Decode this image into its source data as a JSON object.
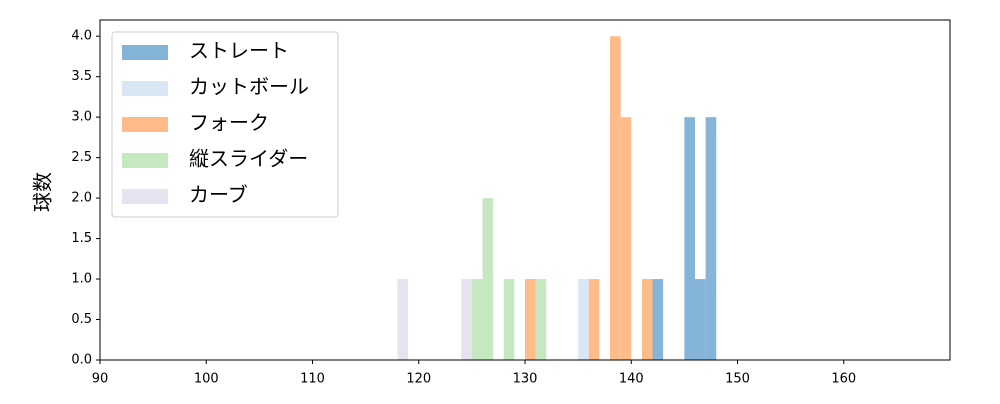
{
  "chart_data": {
    "type": "histogram",
    "y_label": "球数",
    "xlim": [
      90,
      170
    ],
    "ylim": [
      0,
      4.2
    ],
    "xticks": [
      90,
      100,
      110,
      120,
      130,
      140,
      150,
      160
    ],
    "yticks": [
      {
        "value": 0,
        "label": "0.0"
      },
      {
        "value": 0.5,
        "label": "0.5"
      },
      {
        "value": 1,
        "label": "1.0"
      },
      {
        "value": 1.5,
        "label": "1.5"
      },
      {
        "value": 2,
        "label": "2.0"
      },
      {
        "value": 2.5,
        "label": "2.5"
      },
      {
        "value": 3,
        "label": "3.0"
      },
      {
        "value": 3.5,
        "label": "3.5"
      },
      {
        "value": 4,
        "label": "4.0"
      }
    ],
    "legend": "upper left",
    "series": [
      {
        "name": "ストレート",
        "color": "#84b5d9",
        "bins": [
          142,
          143,
          144,
          145,
          146,
          147,
          148
        ],
        "values": [
          1,
          0,
          0,
          3,
          1,
          3
        ]
      },
      {
        "name": "カットボール",
        "color": "#d9e6f3",
        "bins": [
          135,
          136
        ],
        "values": [
          1
        ]
      },
      {
        "name": "フォーク",
        "color": "#ffbb88",
        "bins": [
          130,
          131,
          132,
          133,
          134,
          135,
          136,
          137,
          138,
          139,
          140,
          141,
          142
        ],
        "values": [
          1,
          0,
          0,
          0,
          0,
          0,
          1,
          0,
          4,
          3,
          0,
          1
        ]
      },
      {
        "name": "縦スライダー",
        "color": "#c6e8c1",
        "bins": [
          125,
          126,
          127,
          128,
          129,
          130,
          131,
          132
        ],
        "values": [
          1,
          2,
          0,
          1,
          0,
          0,
          1
        ]
      },
      {
        "name": "カーブ",
        "color": "#e4e4f0",
        "bins": [
          118,
          119,
          120,
          121,
          122,
          123,
          124,
          125
        ],
        "values": [
          1,
          0,
          0,
          0,
          0,
          0,
          1
        ]
      }
    ]
  }
}
